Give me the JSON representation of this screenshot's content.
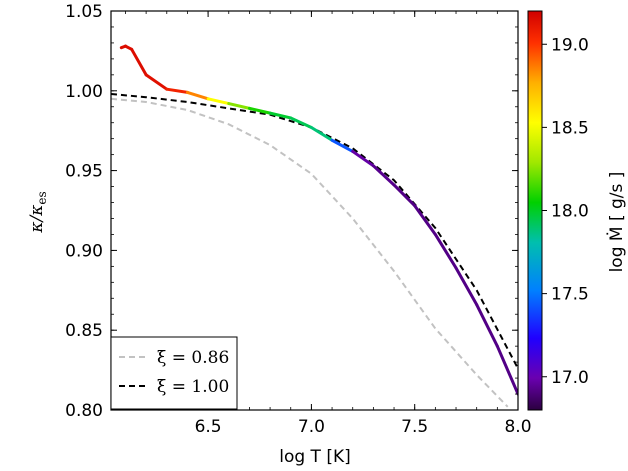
{
  "chart_data": {
    "type": "line",
    "xlabel": "log T [K]",
    "ylabel": "κ/κ_es",
    "xlim": [
      6.03,
      8.0
    ],
    "ylim": [
      0.8,
      1.05
    ],
    "xticks": [
      "6.5",
      "7.0",
      "7.5",
      "8.0"
    ],
    "yticks": [
      "0.80",
      "0.85",
      "0.90",
      "0.95",
      "1.00",
      "1.05"
    ],
    "colorbar": {
      "label": "log Ṁ  [ g/s ]",
      "range": [
        16.8,
        19.2
      ],
      "ticks": [
        "17.0",
        "17.5",
        "18.0",
        "18.5",
        "19.0"
      ]
    },
    "legend": {
      "position": "lower-left",
      "entries": [
        {
          "label": "ξ = 0.86",
          "color": "#c2c2c2",
          "style": "dashed"
        },
        {
          "label": "ξ = 1.00",
          "color": "#000000",
          "style": "dashed"
        }
      ]
    },
    "series": [
      {
        "name": "ξ = 0.86",
        "color": "#c2c2c2",
        "style": "dashed",
        "x": [
          6.03,
          6.2,
          6.4,
          6.6,
          6.8,
          7.0,
          7.2,
          7.4,
          7.6,
          7.8,
          7.95
        ],
        "y": [
          0.995,
          0.993,
          0.988,
          0.979,
          0.966,
          0.948,
          0.92,
          0.887,
          0.851,
          0.822,
          0.802
        ]
      },
      {
        "name": "ξ = 1.00",
        "color": "#000000",
        "style": "dashed",
        "x": [
          6.03,
          6.2,
          6.4,
          6.6,
          6.8,
          7.0,
          7.2,
          7.4,
          7.6,
          7.8,
          8.0
        ],
        "y": [
          0.998,
          0.996,
          0.993,
          0.989,
          0.985,
          0.977,
          0.964,
          0.944,
          0.914,
          0.875,
          0.826
        ]
      },
      {
        "color_scale": "log Mdot",
        "x": [
          6.08,
          6.1,
          6.13,
          6.2,
          6.3,
          6.4,
          6.5,
          6.6,
          6.7,
          6.8,
          6.9,
          7.0,
          7.1,
          7.2,
          7.3,
          7.4,
          7.5,
          7.6,
          7.7,
          7.8,
          7.9,
          8.0
        ],
        "y": [
          1.027,
          1.028,
          1.026,
          1.01,
          1.001,
          0.999,
          0.995,
          0.992,
          0.989,
          0.986,
          0.983,
          0.977,
          0.969,
          0.962,
          0.953,
          0.941,
          0.928,
          0.91,
          0.889,
          0.866,
          0.84,
          0.81
        ],
        "mdot": [
          19.15,
          19.15,
          19.15,
          19.15,
          19.12,
          19.0,
          18.7,
          18.35,
          18.15,
          18.02,
          17.95,
          17.92,
          17.85,
          17.0,
          16.95,
          16.92,
          16.92,
          16.92,
          16.92,
          16.92,
          16.92,
          16.92
        ]
      }
    ]
  }
}
